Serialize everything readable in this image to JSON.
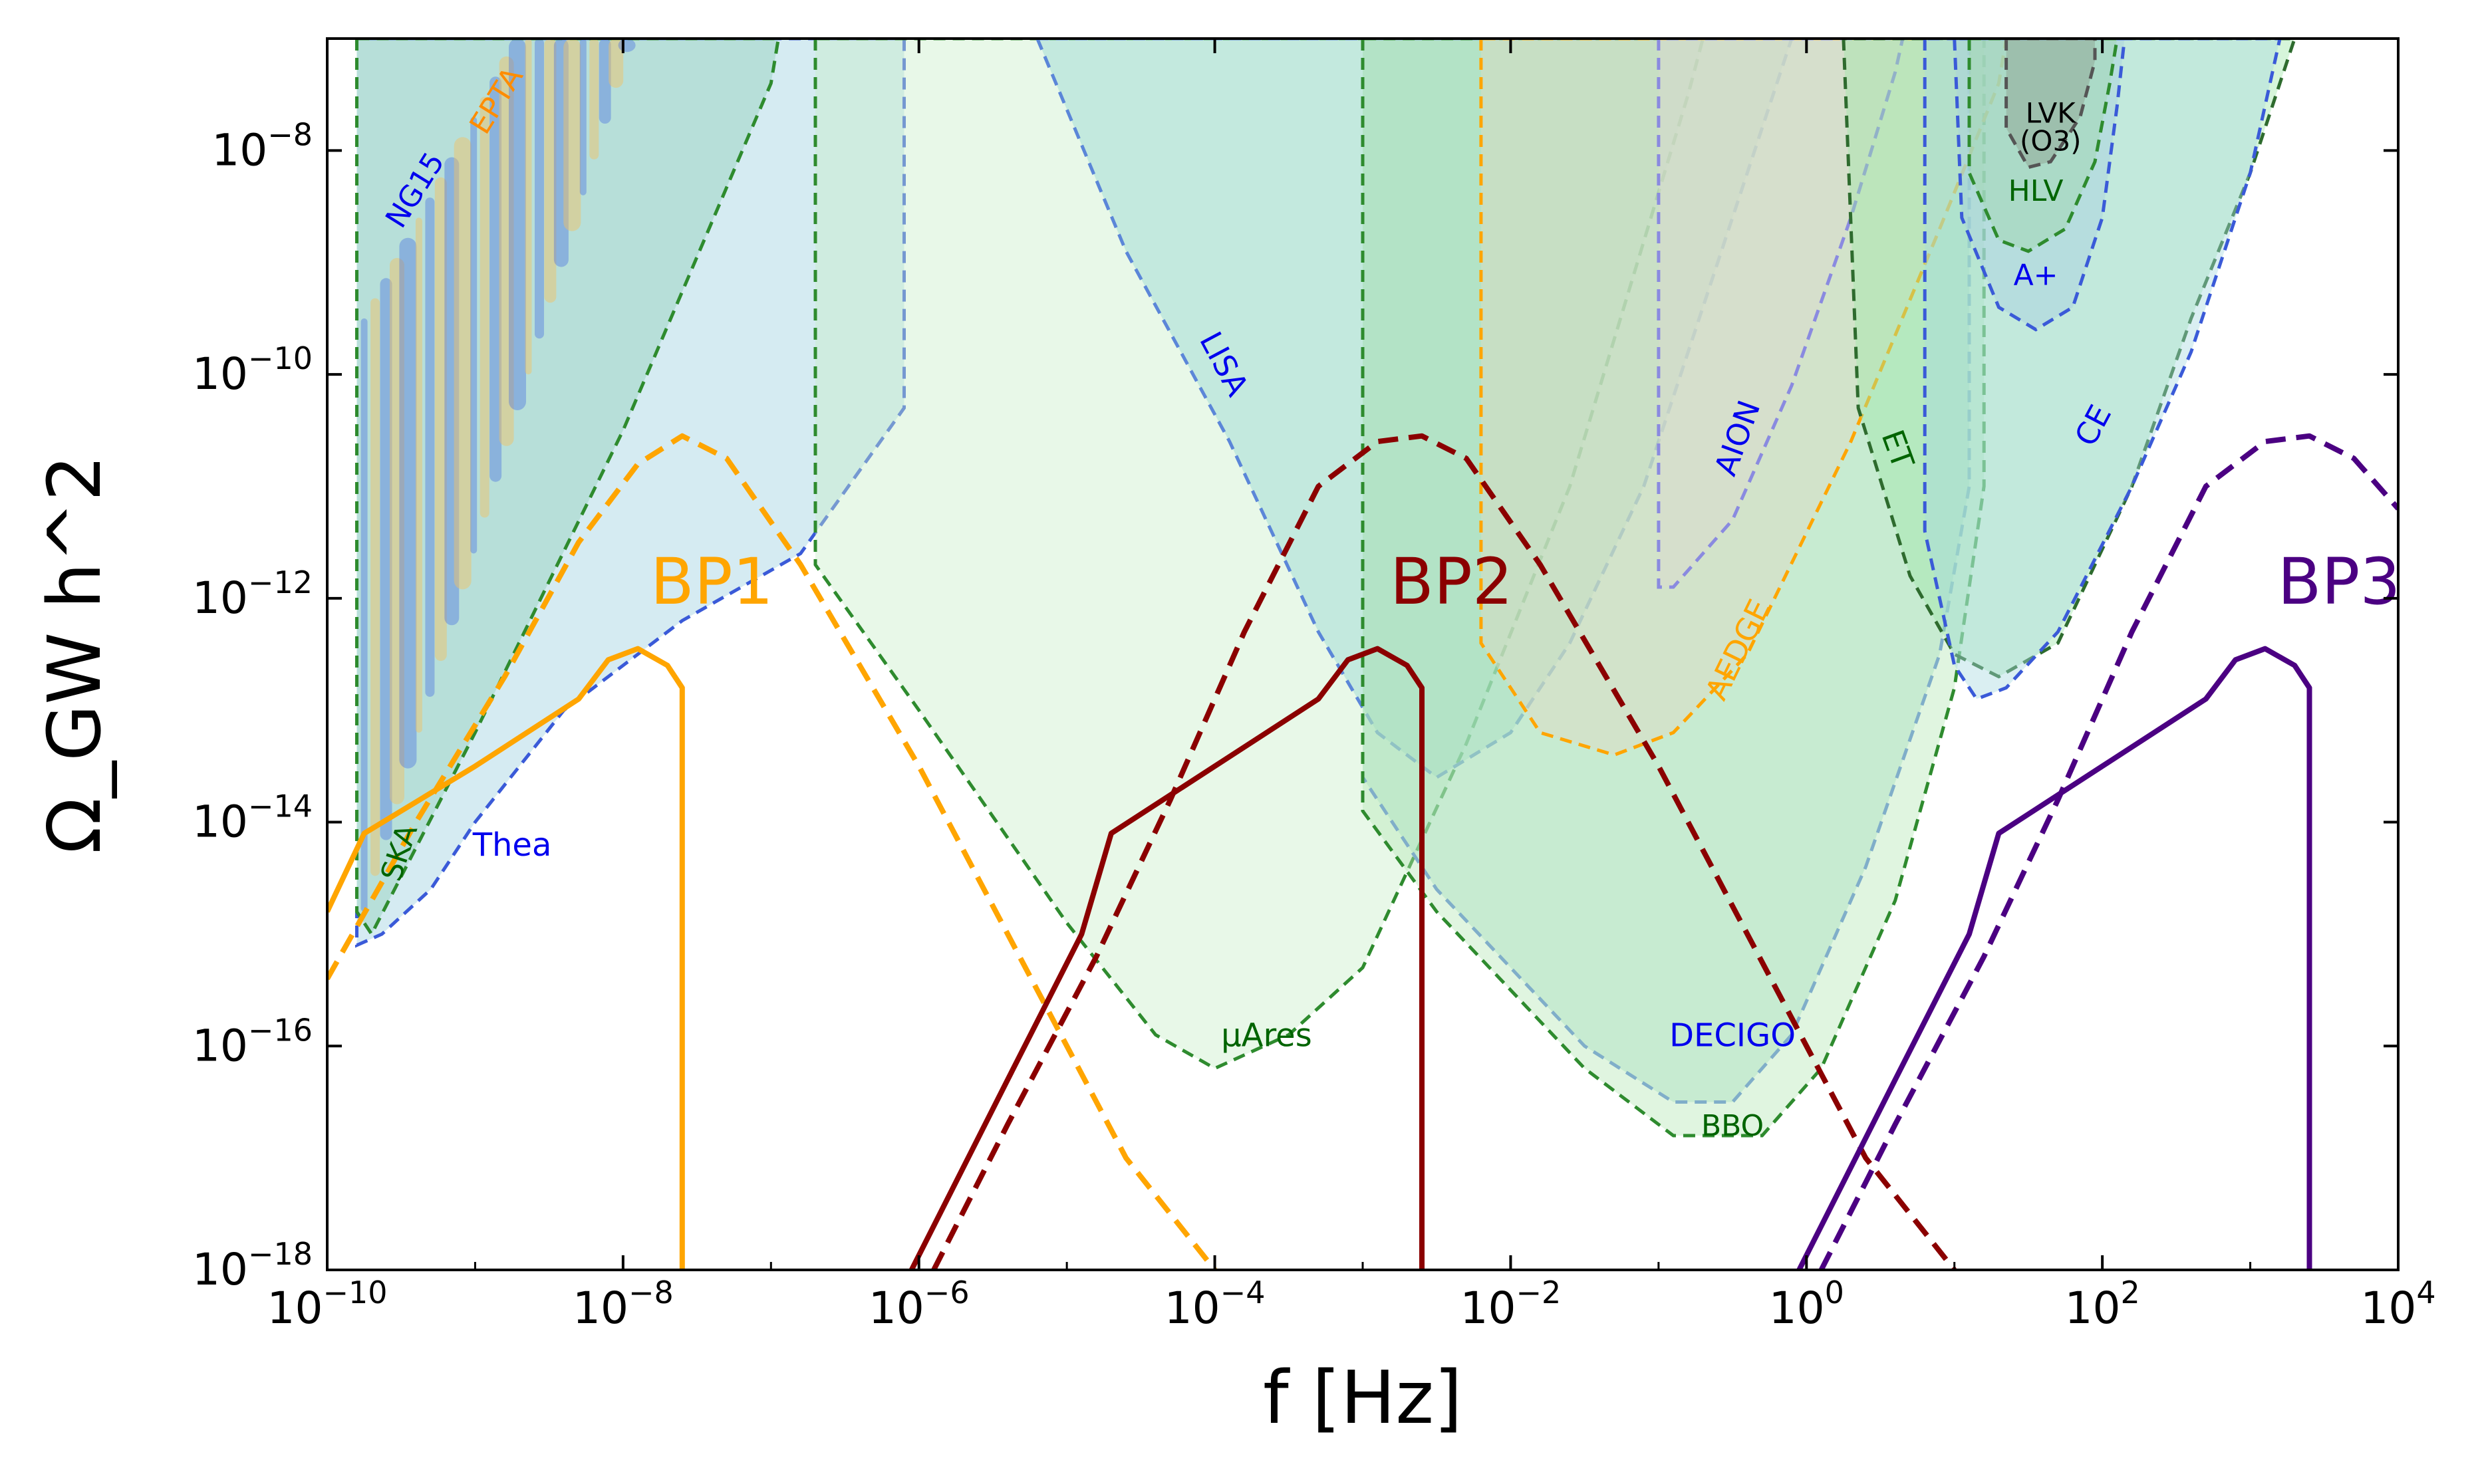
{
  "chart_data": {
    "type": "line",
    "xlabel": "f [Hz]",
    "ylabel": "Ω_GW h^2",
    "xscale": "log",
    "yscale": "log",
    "xlim_log10": [
      -10,
      4
    ],
    "ylim_log10": [
      -18,
      -7
    ],
    "x_ticks": [
      {
        "exp": -10,
        "label": "10",
        "sup": "−10"
      },
      {
        "exp": -8,
        "label": "10",
        "sup": "−8"
      },
      {
        "exp": -6,
        "label": "10",
        "sup": "−6"
      },
      {
        "exp": -4,
        "label": "10",
        "sup": "−4"
      },
      {
        "exp": -2,
        "label": "10",
        "sup": "−2"
      },
      {
        "exp": 0,
        "label": "10",
        "sup": "0"
      },
      {
        "exp": 2,
        "label": "10",
        "sup": "2"
      },
      {
        "exp": 4,
        "label": "10",
        "sup": "4"
      }
    ],
    "y_ticks": [
      {
        "exp": -18,
        "label": "10",
        "sup": "−18"
      },
      {
        "exp": -16,
        "label": "10",
        "sup": "−16"
      },
      {
        "exp": -14,
        "label": "10",
        "sup": "−14"
      },
      {
        "exp": -12,
        "label": "10",
        "sup": "−12"
      },
      {
        "exp": -10,
        "label": "10",
        "sup": "−10"
      },
      {
        "exp": -8,
        "label": "10",
        "sup": "−8"
      }
    ],
    "sensitivity_curves": [
      {
        "name": "Thea",
        "label": "Thea",
        "color": "#9ccfe0",
        "edge": "#3a5ad8",
        "text_color": "#0000ee",
        "points": [
          [
            -9.8,
            -7
          ],
          [
            -9.8,
            -15.1
          ],
          [
            -9.63,
            -15.0
          ],
          [
            -9.3,
            -14.6
          ],
          [
            -9.0,
            -14.0
          ],
          [
            -8.4,
            -13.0
          ],
          [
            -7.6,
            -12.2
          ],
          [
            -6.8,
            -11.6
          ],
          [
            -6.1,
            -10.3
          ],
          [
            -6.1,
            -7
          ]
        ]
      },
      {
        "name": "SKA",
        "label": "SKA",
        "color": "#8fcfb8",
        "edge": "#2e8b2e",
        "text_color": "#006400",
        "points": [
          [
            -9.8,
            -7
          ],
          [
            -9.8,
            -14.8
          ],
          [
            -9.7,
            -15.0
          ],
          [
            -9.0,
            -13.2
          ],
          [
            -8.0,
            -10.5
          ],
          [
            -7.0,
            -7.4
          ],
          [
            -6.95,
            -7
          ]
        ]
      },
      {
        "name": "µAres",
        "label": "µAres",
        "color": "#c8eec8",
        "edge": "#2e8b2e",
        "text_color": "#006400",
        "points": [
          [
            -6.7,
            -7
          ],
          [
            -6.7,
            -11.7
          ],
          [
            -6.0,
            -13.0
          ],
          [
            -5.0,
            -14.9
          ],
          [
            -4.4,
            -15.9
          ],
          [
            -4.0,
            -16.2
          ],
          [
            -3.5,
            -15.9
          ],
          [
            -3.0,
            -15.3
          ],
          [
            -2.3,
            -13.3
          ],
          [
            -1.6,
            -11.0
          ],
          [
            -0.8,
            -7.5
          ],
          [
            -0.7,
            -7
          ]
        ]
      },
      {
        "name": "LISA",
        "label": "LISA",
        "color": "#8ed4d0",
        "edge": "#5b86d8",
        "text_color": "#0000ee",
        "points": [
          [
            -5.2,
            -7
          ],
          [
            -4.6,
            -8.9
          ],
          [
            -3.9,
            -10.6
          ],
          [
            -3.3,
            -12.3
          ],
          [
            -2.9,
            -13.2
          ],
          [
            -2.5,
            -13.6
          ],
          [
            -2.0,
            -13.2
          ],
          [
            -1.6,
            -12.4
          ],
          [
            -1.1,
            -11.0
          ],
          [
            -0.6,
            -9.0
          ],
          [
            -0.1,
            -7
          ]
        ]
      },
      {
        "name": "DECIGO",
        "label": "DECIGO",
        "color": "#9bd7c4",
        "edge": "#5b86d8",
        "text_color": "#0000ee",
        "points": [
          [
            -3.0,
            -7
          ],
          [
            -3.0,
            -13.6
          ],
          [
            -2.5,
            -14.6
          ],
          [
            -1.5,
            -16.0
          ],
          [
            -0.9,
            -16.5
          ],
          [
            -0.5,
            -16.5
          ],
          [
            -0.1,
            -15.9
          ],
          [
            0.4,
            -14.4
          ],
          [
            0.9,
            -12.5
          ],
          [
            1.1,
            -11.0
          ],
          [
            1.1,
            -7
          ]
        ]
      },
      {
        "name": "BBO",
        "label": "BBO",
        "color": "#b6e8b6",
        "edge": "#2e8b2e",
        "text_color": "#006400",
        "points": [
          [
            -3.0,
            -7
          ],
          [
            -3.0,
            -13.9
          ],
          [
            -2.5,
            -14.8
          ],
          [
            -1.5,
            -16.2
          ],
          [
            -0.9,
            -16.8
          ],
          [
            -0.3,
            -16.8
          ],
          [
            0.1,
            -16.2
          ],
          [
            0.6,
            -14.7
          ],
          [
            1.0,
            -12.8
          ],
          [
            1.2,
            -11.0
          ],
          [
            1.2,
            -7
          ]
        ]
      },
      {
        "name": "AEDGE",
        "label": "AEDGE",
        "color": "#e3d8c0",
        "edge": "#ffa500",
        "text_color": "#ffa500",
        "points": [
          [
            -2.2,
            -7
          ],
          [
            -2.2,
            -12.4
          ],
          [
            -1.8,
            -13.2
          ],
          [
            -1.3,
            -13.4
          ],
          [
            -0.9,
            -13.2
          ],
          [
            -0.4,
            -12.5
          ],
          [
            0.3,
            -10.6
          ],
          [
            0.9,
            -8.7
          ],
          [
            1.3,
            -7.4
          ],
          [
            1.35,
            -7
          ]
        ]
      },
      {
        "name": "AION",
        "label": "AION",
        "color": "#dcd8d0",
        "edge": "#8a8ae0",
        "text_color": "#0000ee",
        "points": [
          [
            -1.0,
            -7
          ],
          [
            -1.0,
            -11.9
          ],
          [
            -0.9,
            -11.9
          ],
          [
            -0.5,
            -11.3
          ],
          [
            -0.1,
            -10.1
          ],
          [
            0.3,
            -8.6
          ],
          [
            0.6,
            -7.3
          ],
          [
            0.65,
            -7
          ]
        ]
      },
      {
        "name": "ET",
        "label": "ET",
        "color": "#9ee6a6",
        "edge": "#2e6b2e",
        "text_color": "#006400",
        "points": [
          [
            0.25,
            -7
          ],
          [
            0.35,
            -10.3
          ],
          [
            0.7,
            -11.8
          ],
          [
            1.0,
            -12.5
          ],
          [
            1.3,
            -12.7
          ],
          [
            1.7,
            -12.4
          ],
          [
            2.2,
            -11.0
          ],
          [
            2.6,
            -9.5
          ],
          [
            3.0,
            -8.2
          ],
          [
            3.3,
            -7.0
          ]
        ]
      },
      {
        "name": "CE",
        "label": "CE",
        "color": "#a8d8e0",
        "edge": "#3a5ad8",
        "text_color": "#0000ee",
        "points": [
          [
            0.8,
            -7
          ],
          [
            0.8,
            -11.4
          ],
          [
            1.0,
            -12.6
          ],
          [
            1.15,
            -12.9
          ],
          [
            1.35,
            -12.8
          ],
          [
            1.7,
            -12.3
          ],
          [
            2.2,
            -11.0
          ],
          [
            2.6,
            -9.8
          ],
          [
            3.0,
            -8.2
          ],
          [
            3.2,
            -7.0
          ]
        ]
      },
      {
        "name": "A+",
        "label": "A+",
        "color": "#a8cce0",
        "edge": "#3a5ad8",
        "text_color": "#0000ee",
        "points": [
          [
            1.0,
            -7
          ],
          [
            1.05,
            -8.6
          ],
          [
            1.3,
            -9.4
          ],
          [
            1.55,
            -9.6
          ],
          [
            1.8,
            -9.4
          ],
          [
            2.0,
            -8.6
          ],
          [
            2.1,
            -7.6
          ],
          [
            2.15,
            -7
          ]
        ]
      },
      {
        "name": "HLV",
        "label": "HLV",
        "color": "#9ed6a8",
        "edge": "#2e8b2e",
        "text_color": "#006400",
        "points": [
          [
            1.1,
            -7
          ],
          [
            1.1,
            -8.2
          ],
          [
            1.3,
            -8.8
          ],
          [
            1.5,
            -8.9
          ],
          [
            1.75,
            -8.7
          ],
          [
            1.95,
            -8.1
          ],
          [
            2.05,
            -7.4
          ],
          [
            2.1,
            -7
          ]
        ]
      },
      {
        "name": "LVK (O3)",
        "label": "LVK",
        "label2": "(O3)",
        "color": "#8a9a8a",
        "edge": "#555555",
        "text_color": "#000000",
        "points": [
          [
            1.35,
            -7
          ],
          [
            1.35,
            -7.8
          ],
          [
            1.5,
            -8.15
          ],
          [
            1.65,
            -8.1
          ],
          [
            1.85,
            -7.7
          ],
          [
            1.95,
            -7.2
          ],
          [
            1.95,
            -7
          ]
        ]
      }
    ],
    "pta_regions": [
      {
        "name": "NG15",
        "label": "NG15",
        "color": "#4169e1",
        "text_color": "#0000ee"
      },
      {
        "name": "EPTA",
        "label": "EPTA",
        "color": "#f5c060",
        "text_color": "#ff8c00"
      }
    ],
    "benchmarks": [
      {
        "name": "BP1",
        "label": "BP1",
        "color": "#ffa500",
        "peak_x": -7.6,
        "peak_y": -10.5,
        "dashed": [
          [
            -10.0,
            -15.4
          ],
          [
            -9.4,
            -14.0
          ],
          [
            -8.8,
            -12.7
          ],
          [
            -8.3,
            -11.5
          ],
          [
            -7.9,
            -10.8
          ],
          [
            -7.6,
            -10.55
          ],
          [
            -7.3,
            -10.75
          ],
          [
            -6.8,
            -11.7
          ],
          [
            -6.0,
            -13.5
          ],
          [
            -5.2,
            -15.5
          ],
          [
            -4.6,
            -17.0
          ],
          [
            -4.0,
            -18.0
          ]
        ],
        "solid": [
          [
            -10.0,
            -14.8
          ],
          [
            -9.75,
            -14.1
          ],
          [
            -9.0,
            -13.5
          ],
          [
            -8.3,
            -12.9
          ],
          [
            -8.1,
            -12.55
          ],
          [
            -7.9,
            -12.45
          ],
          [
            -7.7,
            -12.6
          ],
          [
            -7.6,
            -12.8
          ],
          [
            -7.6,
            -18.0
          ]
        ]
      },
      {
        "name": "BP2",
        "label": "BP2",
        "color": "#8b0000",
        "peak_x": -2.6,
        "peak_y": -10.5,
        "dashed": [
          [
            -5.9,
            -18.0
          ],
          [
            -5.4,
            -16.7
          ],
          [
            -4.8,
            -15.2
          ],
          [
            -4.3,
            -13.8
          ],
          [
            -3.8,
            -12.3
          ],
          [
            -3.3,
            -11.0
          ],
          [
            -2.9,
            -10.6
          ],
          [
            -2.6,
            -10.55
          ],
          [
            -2.3,
            -10.75
          ],
          [
            -1.8,
            -11.7
          ],
          [
            -1.0,
            -13.5
          ],
          [
            -0.2,
            -15.5
          ],
          [
            0.4,
            -17.0
          ],
          [
            1.0,
            -18.0
          ]
        ],
        "solid": [
          [
            -6.05,
            -18.0
          ],
          [
            -5.4,
            -16.3
          ],
          [
            -4.9,
            -15.0
          ],
          [
            -4.7,
            -14.1
          ],
          [
            -4.0,
            -13.5
          ],
          [
            -3.3,
            -12.9
          ],
          [
            -3.1,
            -12.55
          ],
          [
            -2.9,
            -12.45
          ],
          [
            -2.7,
            -12.6
          ],
          [
            -2.6,
            -12.8
          ],
          [
            -2.6,
            -18.0
          ]
        ]
      },
      {
        "name": "BP3",
        "label": "BP3",
        "color": "#4b0082",
        "peak_x": 3.4,
        "peak_y": -10.5,
        "dashed": [
          [
            0.1,
            -18.0
          ],
          [
            0.6,
            -16.7
          ],
          [
            1.2,
            -15.2
          ],
          [
            1.7,
            -13.8
          ],
          [
            2.2,
            -12.3
          ],
          [
            2.7,
            -11.0
          ],
          [
            3.1,
            -10.6
          ],
          [
            3.4,
            -10.55
          ],
          [
            3.7,
            -10.75
          ],
          [
            4.0,
            -11.2
          ]
        ],
        "solid": [
          [
            -0.05,
            -18.0
          ],
          [
            0.6,
            -16.3
          ],
          [
            1.1,
            -15.0
          ],
          [
            1.3,
            -14.1
          ],
          [
            2.0,
            -13.5
          ],
          [
            2.7,
            -12.9
          ],
          [
            2.9,
            -12.55
          ],
          [
            3.1,
            -12.45
          ],
          [
            3.3,
            -12.6
          ],
          [
            3.4,
            -12.8
          ],
          [
            3.4,
            -18.0
          ]
        ]
      }
    ]
  }
}
